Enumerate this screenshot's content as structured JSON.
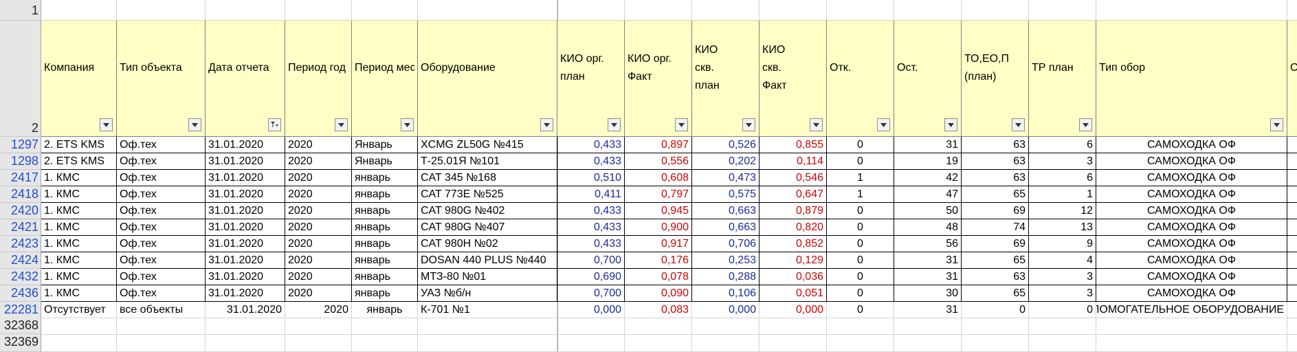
{
  "row_numbers": {
    "r1": "1",
    "r2": "2",
    "tail": [
      "32368",
      "32369"
    ]
  },
  "headers": [
    {
      "key": "company",
      "label": "Компания",
      "filter": "filter-icon"
    },
    {
      "key": "objtype",
      "label": "Тип объекта",
      "filter": "filter-icon"
    },
    {
      "key": "date",
      "label": "Дата отчета",
      "filter": "filter-active-icon"
    },
    {
      "key": "year",
      "label": "Период год",
      "filter": "filter-icon"
    },
    {
      "key": "month",
      "label": "Период мес",
      "filter": "filter-icon"
    },
    {
      "key": "equip",
      "label": "Оборудование",
      "filter": "filter-icon"
    },
    {
      "key": "kio_org_plan",
      "label": "КИО орг. план",
      "filter": "filter-icon"
    },
    {
      "key": "kio_org_fact",
      "label": "КИО орг. Факт",
      "filter": "filter-icon"
    },
    {
      "key": "kio_skv_plan",
      "label": "КИО скв. план",
      "filter": "filter-icon"
    },
    {
      "key": "kio_skv_fact",
      "label": "КИО скв. Факт",
      "filter": "filter-icon"
    },
    {
      "key": "otk",
      "label": "Отк.",
      "filter": "filter-icon"
    },
    {
      "key": "ost",
      "label": "Ост.",
      "filter": "filter-icon"
    },
    {
      "key": "to",
      "label": "ТО,ЕО,ППР (план)",
      "filter": "filter-icon"
    },
    {
      "key": "tr",
      "label": "ТР план",
      "filter": "filter-icon"
    },
    {
      "key": "tipobor",
      "label": "Тип обор",
      "filter": "filter-icon"
    },
    {
      "key": "next",
      "label": "О",
      "filter": "filter-icon"
    }
  ],
  "rows": [
    {
      "num": "1297",
      "company": "2. ETS KMS",
      "objtype": "Оф.тех",
      "date": "31.01.2020",
      "year": "2020",
      "month": "Январь",
      "equip": "XCMG ZL50G №415",
      "kio_org_plan": "0,433",
      "kio_org_fact": "0,897",
      "kio_skv_plan": "0,526",
      "kio_skv_fact": "0,855",
      "otk": "0",
      "ost": "31",
      "to": "63",
      "tr": "6",
      "tipobor": "САМОХОДКА ОФ"
    },
    {
      "num": "1298",
      "company": "2. ETS KMS",
      "objtype": "Оф.тех",
      "date": "31.01.2020",
      "year": "2020",
      "month": "Январь",
      "equip": "Т-25.01Я №101",
      "kio_org_plan": "0,433",
      "kio_org_fact": "0,556",
      "kio_skv_plan": "0,202",
      "kio_skv_fact": "0,114",
      "otk": "0",
      "ost": "19",
      "to": "63",
      "tr": "3",
      "tipobor": "САМОХОДКА ОФ"
    },
    {
      "num": "2417",
      "company": "1. КМС",
      "objtype": "Оф.тех",
      "date": "31.01.2020",
      "year": "2020",
      "month": "январь",
      "equip": "CAT 345 №168",
      "kio_org_plan": "0,510",
      "kio_org_fact": "0,608",
      "kio_skv_plan": "0,473",
      "kio_skv_fact": "0,546",
      "otk": "1",
      "ost": "42",
      "to": "63",
      "tr": "6",
      "tipobor": "САМОХОДКА ОФ"
    },
    {
      "num": "2418",
      "company": "1. КМС",
      "objtype": "Оф.тех",
      "date": "31.01.2020",
      "year": "2020",
      "month": "январь",
      "equip": "CAT 773E №525",
      "kio_org_plan": "0,411",
      "kio_org_fact": "0,797",
      "kio_skv_plan": "0,575",
      "kio_skv_fact": "0,647",
      "otk": "1",
      "ost": "47",
      "to": "65",
      "tr": "1",
      "tipobor": "САМОХОДКА ОФ"
    },
    {
      "num": "2420",
      "company": "1. КМС",
      "objtype": "Оф.тех",
      "date": "31.01.2020",
      "year": "2020",
      "month": "январь",
      "equip": "CAT 980G №402",
      "kio_org_plan": "0,433",
      "kio_org_fact": "0,945",
      "kio_skv_plan": "0,663",
      "kio_skv_fact": "0,879",
      "otk": "0",
      "ost": "50",
      "to": "69",
      "tr": "12",
      "tipobor": "САМОХОДКА ОФ"
    },
    {
      "num": "2421",
      "company": "1. КМС",
      "objtype": "Оф.тех",
      "date": "31.01.2020",
      "year": "2020",
      "month": "январь",
      "equip": "CAT 980G №407",
      "kio_org_plan": "0,433",
      "kio_org_fact": "0,900",
      "kio_skv_plan": "0,663",
      "kio_skv_fact": "0,820",
      "otk": "0",
      "ost": "48",
      "to": "74",
      "tr": "13",
      "tipobor": "САМОХОДКА ОФ"
    },
    {
      "num": "2423",
      "company": "1. КМС",
      "objtype": "Оф.тех",
      "date": "31.01.2020",
      "year": "2020",
      "month": "январь",
      "equip": "CAT 980H №02",
      "kio_org_plan": "0,433",
      "kio_org_fact": "0,917",
      "kio_skv_plan": "0,706",
      "kio_skv_fact": "0,852",
      "otk": "0",
      "ost": "56",
      "to": "69",
      "tr": "9",
      "tipobor": "САМОХОДКА ОФ"
    },
    {
      "num": "2424",
      "company": "1. КМС",
      "objtype": "Оф.тех",
      "date": "31.01.2020",
      "year": "2020",
      "month": "январь",
      "equip": "DOSAN 440 PLUS №440",
      "kio_org_plan": "0,700",
      "kio_org_fact": "0,176",
      "kio_skv_plan": "0,253",
      "kio_skv_fact": "0,129",
      "otk": "0",
      "ost": "31",
      "to": "65",
      "tr": "4",
      "tipobor": "САМОХОДКА ОФ"
    },
    {
      "num": "2432",
      "company": "1. КМС",
      "objtype": "Оф.тех",
      "date": "31.01.2020",
      "year": "2020",
      "month": "январь",
      "equip": "МТЗ-80 №01",
      "kio_org_plan": "0,690",
      "kio_org_fact": "0,078",
      "kio_skv_plan": "0,288",
      "kio_skv_fact": "0,036",
      "otk": "0",
      "ost": "31",
      "to": "63",
      "tr": "3",
      "tipobor": "САМОХОДКА ОФ"
    },
    {
      "num": "2436",
      "company": "1. КМС",
      "objtype": "Оф.тех",
      "date": "31.01.2020",
      "year": "2020",
      "month": "январь",
      "equip": "УАЗ №б/н",
      "kio_org_plan": "0,700",
      "kio_org_fact": "0,090",
      "kio_skv_plan": "0,106",
      "kio_skv_fact": "0,051",
      "otk": "0",
      "ost": "30",
      "to": "65",
      "tr": "3",
      "tipobor": "САМОХОДКА ОФ"
    },
    {
      "num": "22281",
      "company": "Отсутствует",
      "objtype": "все объекты",
      "date": "31.01.2020",
      "year": "2020",
      "month": "январь",
      "equip": "К-701 №1",
      "kio_org_plan": "0,000",
      "kio_org_fact": "0,083",
      "kio_skv_plan": "0,000",
      "kio_skv_fact": "0,000",
      "otk": "0",
      "ost": "31",
      "to": "0",
      "tr": "0",
      "tipobor": "ВСПОМОГАТЕЛЬНОЕ ОБОРУДОВАНИЕ"
    }
  ],
  "colors": {
    "header_fill": "#ffffc6",
    "plan_text": "#1a2a9a",
    "fact_text": "#d40000",
    "row_number_text": "#1f4fd1"
  }
}
